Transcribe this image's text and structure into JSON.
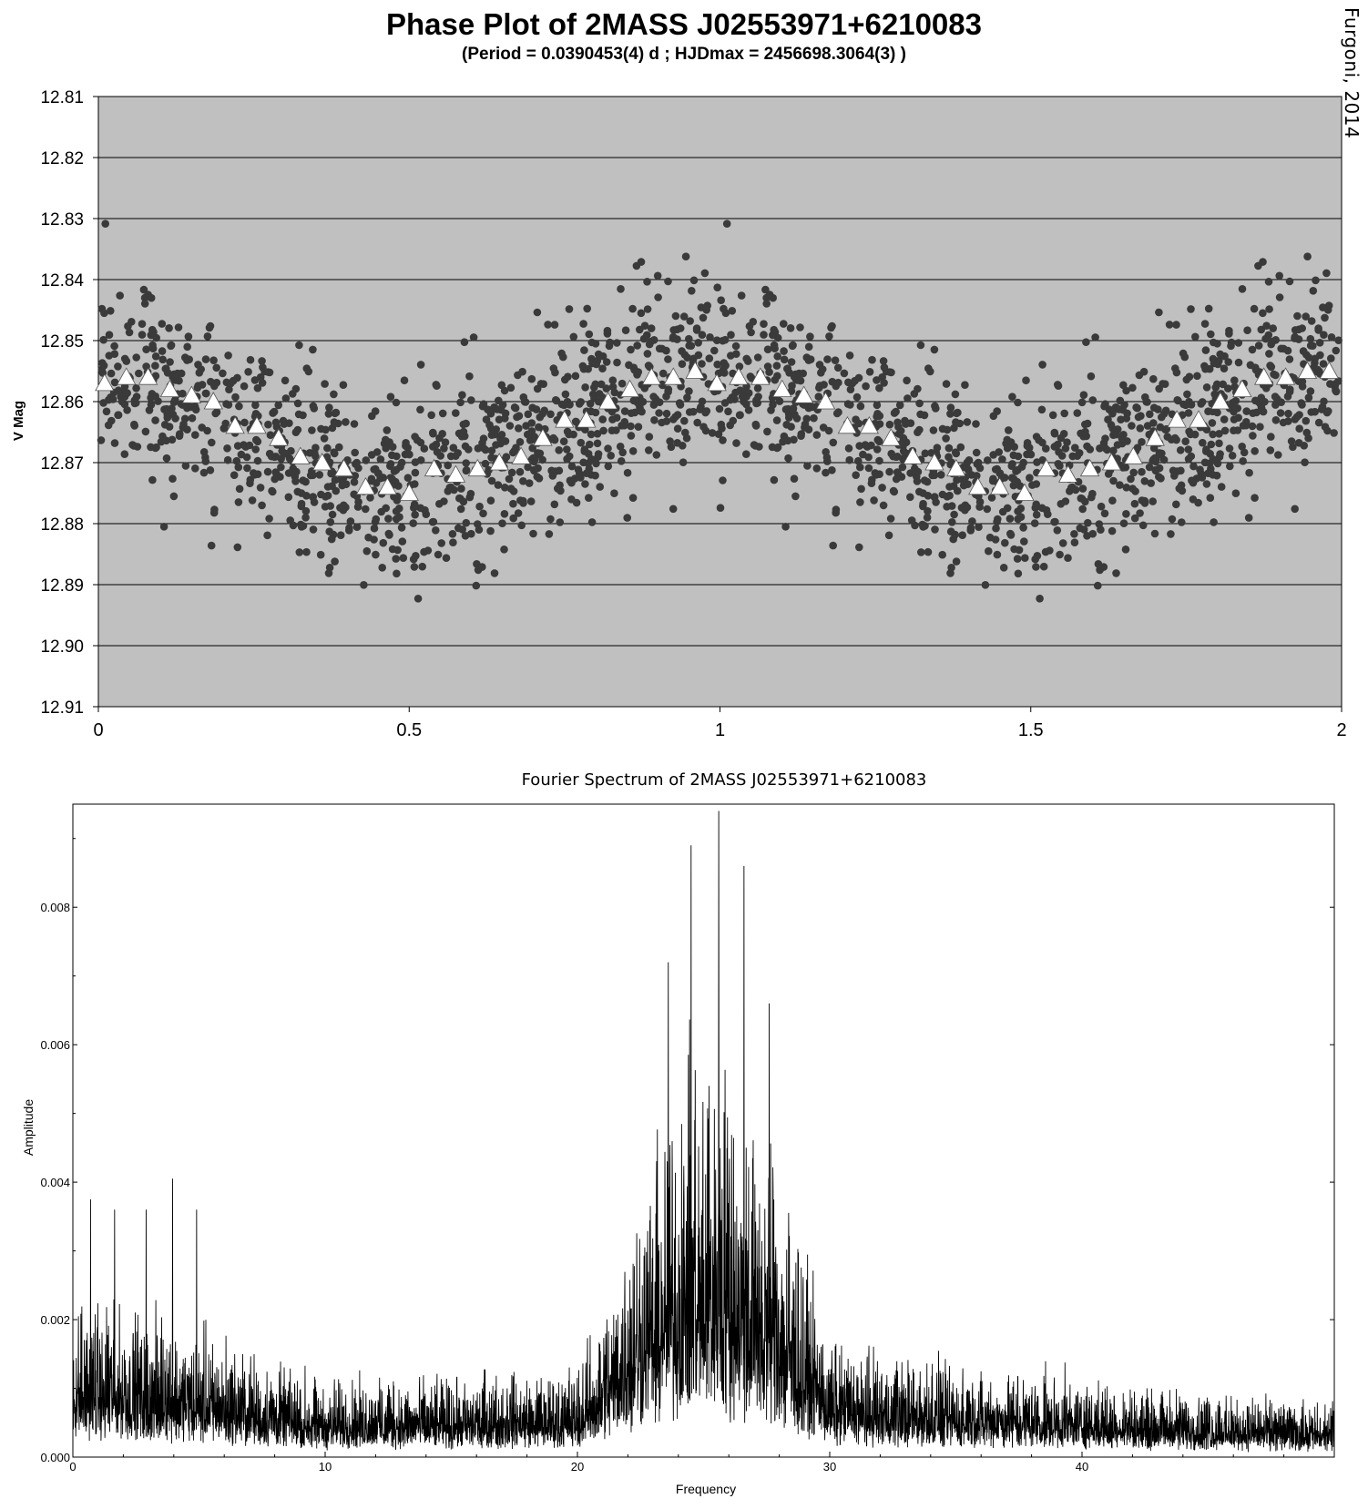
{
  "header": {
    "title": "Phase Plot of 2MASS J02553971+6210083",
    "subtitle": "(Period = 0.0390453(4) d ; HJDmax = 2456698.3064(3) )",
    "credit": "Furgoni, 2014"
  },
  "colors": {
    "plot_background": "#c0c0c0",
    "observation_points": "#3a3a3a",
    "mean_markers": "#ffffff",
    "spectrum_line": "#000000"
  },
  "chart_data": [
    {
      "type": "scatter",
      "title": "Phase Plot of 2MASS J02553971+6210083",
      "subtitle": "(Period = 0.0390453(4) d ; HJDmax = 2456698.3064(3) )",
      "xlabel": "",
      "ylabel": "V Mag",
      "xlim": [
        0,
        2
      ],
      "ylim": [
        12.81,
        12.91
      ],
      "y_inverted": true,
      "grid": "horizontal",
      "x_ticks": [
        "0",
        "0.5",
        "1",
        "1.5",
        "2"
      ],
      "y_ticks": [
        "12.81",
        "12.82",
        "12.83",
        "12.84",
        "12.85",
        "12.86",
        "12.87",
        "12.88",
        "12.89",
        "12.90",
        "12.91"
      ],
      "point_cloud": {
        "count": 1050,
        "marker": "circle",
        "repeated_for_second_cycle": true
      },
      "series": [
        {
          "marker": "triangle",
          "x": [
            0.01,
            0.045,
            0.08,
            0.115,
            0.15,
            0.185,
            0.22,
            0.255,
            0.29,
            0.325,
            0.36,
            0.395,
            0.43,
            0.465,
            0.5,
            0.54,
            0.575,
            0.61,
            0.645,
            0.68,
            0.715,
            0.75,
            0.785,
            0.82,
            0.855,
            0.89,
            0.925,
            0.96,
            0.995,
            1.03,
            1.065,
            1.1,
            1.135,
            1.17,
            1.205,
            1.24,
            1.275,
            1.31,
            1.345,
            1.38,
            1.415,
            1.45,
            1.49,
            1.525,
            1.56,
            1.595,
            1.63,
            1.665,
            1.7,
            1.735,
            1.77,
            1.805,
            1.84,
            1.875,
            1.91,
            1.945,
            1.98
          ],
          "y": [
            12.857,
            12.856,
            12.856,
            12.858,
            12.859,
            12.86,
            12.864,
            12.864,
            12.866,
            12.869,
            12.87,
            12.871,
            12.874,
            12.874,
            12.875,
            12.871,
            12.872,
            12.871,
            12.87,
            12.869,
            12.866,
            12.863,
            12.863,
            12.86,
            12.858,
            12.856,
            12.856,
            12.855,
            12.857,
            12.856,
            12.856,
            12.858,
            12.859,
            12.86,
            12.864,
            12.864,
            12.866,
            12.869,
            12.87,
            12.871,
            12.874,
            12.874,
            12.875,
            12.871,
            12.872,
            12.871,
            12.87,
            12.869,
            12.866,
            12.863,
            12.863,
            12.86,
            12.858,
            12.856,
            12.856,
            12.855,
            12.855
          ]
        }
      ]
    },
    {
      "type": "line",
      "title": "Fourier Spectrum of 2MASS J02553971+6210083",
      "xlabel": "Frequency",
      "ylabel": "Amplitude",
      "xlim": [
        0,
        50
      ],
      "ylim": [
        0,
        0.0095
      ],
      "x_ticks": [
        "0",
        "10",
        "20",
        "30",
        "40"
      ],
      "y_ticks": [
        "0.000",
        "0.002",
        "0.004",
        "0.006",
        "0.008"
      ],
      "envelope": {
        "frequency": [
          0,
          1,
          3,
          5,
          7,
          10,
          15,
          20,
          21,
          22,
          23,
          24,
          25,
          26,
          27,
          28,
          29,
          30,
          35,
          40,
          45,
          50
        ],
        "mean_amplitude": [
          0.0012,
          0.0012,
          0.0011,
          0.001,
          0.0008,
          0.0006,
          0.0006,
          0.0007,
          0.0011,
          0.0018,
          0.0024,
          0.0028,
          0.003,
          0.0029,
          0.0026,
          0.0022,
          0.0015,
          0.0009,
          0.0007,
          0.0006,
          0.0005,
          0.0004
        ]
      },
      "peaks": [
        {
          "frequency": 0.7,
          "amplitude": 0.00375
        },
        {
          "frequency": 1.65,
          "amplitude": 0.0036
        },
        {
          "frequency": 2.9,
          "amplitude": 0.0036
        },
        {
          "frequency": 3.95,
          "amplitude": 0.00405
        },
        {
          "frequency": 4.9,
          "amplitude": 0.0036
        },
        {
          "frequency": 23.6,
          "amplitude": 0.0072
        },
        {
          "frequency": 24.5,
          "amplitude": 0.0089
        },
        {
          "frequency": 25.6,
          "amplitude": 0.0094
        },
        {
          "frequency": 26.6,
          "amplitude": 0.0086
        },
        {
          "frequency": 27.6,
          "amplitude": 0.0066
        }
      ]
    }
  ]
}
